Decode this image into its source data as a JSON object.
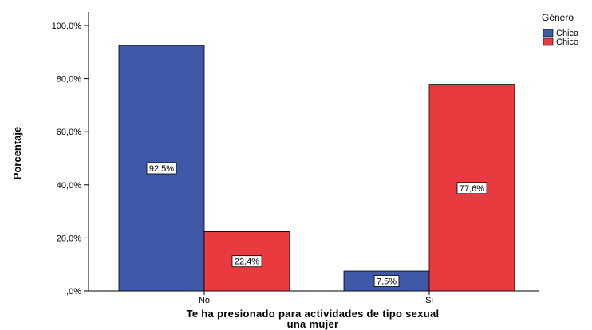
{
  "chart_data": {
    "type": "bar",
    "categories": [
      "No",
      "Si"
    ],
    "series": [
      {
        "name": "Chica",
        "values": [
          92.5,
          7.5
        ],
        "labels": [
          "92,5%",
          "7,5%"
        ],
        "color": "#3f58a8"
      },
      {
        "name": "Chico",
        "values": [
          22.4,
          77.6
        ],
        "labels": [
          "22,4%",
          "77,6%"
        ],
        "color": "#e83a3f"
      }
    ],
    "ylabel": "Porcentaje",
    "xlabel_lines": [
      "Te ha presionado para actividades de tipo sexual",
      "una mujer"
    ],
    "ylim": [
      0,
      100
    ],
    "yticks": [
      0,
      20,
      40,
      60,
      80,
      100
    ],
    "ytick_labels": [
      ",0%",
      "20,0%",
      "40,0%",
      "60,0%",
      "80,0%",
      "100,0%"
    ],
    "legend": {
      "title": "Género",
      "placement": "top-right"
    },
    "grid": false
  }
}
